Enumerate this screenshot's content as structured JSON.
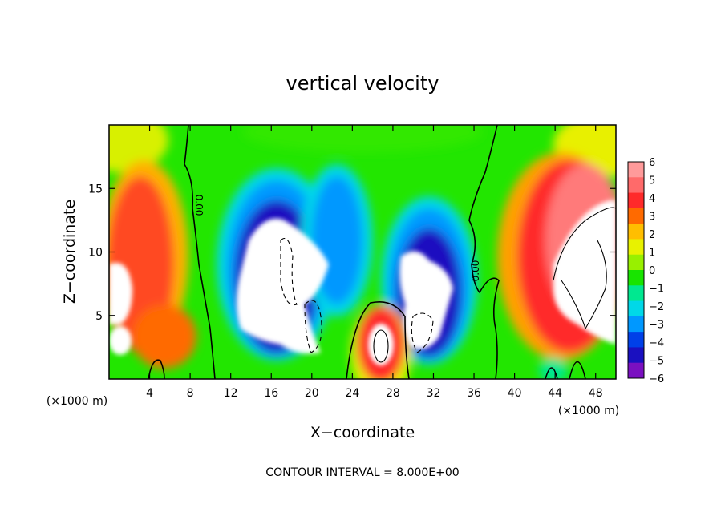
{
  "chart_data": {
    "type": "heatmap",
    "title": "vertical velocity",
    "xlabel": "X−coordinate",
    "ylabel": "Z−coordinate",
    "x_unit_left": "(×1000 m)",
    "x_unit_right": "(×1000 m)",
    "xlim": [
      0,
      50
    ],
    "ylim": [
      0,
      20
    ],
    "x_ticks": [
      4,
      8,
      12,
      16,
      20,
      24,
      28,
      32,
      36,
      40,
      44,
      48
    ],
    "y_ticks": [
      5,
      10,
      15
    ],
    "colorbar": {
      "ticks": [
        "6",
        "5",
        "4",
        "3",
        "2",
        "1",
        "0",
        "−1",
        "−2",
        "−3",
        "−4",
        "−5",
        "−6"
      ],
      "colors": [
        "#ff9a9a",
        "#ff6a6a",
        "#ff2a2a",
        "#ff6a00",
        "#ffbe00",
        "#e8f200",
        "#98f000",
        "#18e400",
        "#00e890",
        "#00d8e8",
        "#0098ff",
        "#0040e8",
        "#1a10c0",
        "#7a10c0"
      ]
    },
    "contour_labels": [
      "0.00",
      "0.00"
    ],
    "annotation": "CONTOUR INTERVAL = 8.000E+00",
    "features": [
      {
        "kind": "updraft",
        "x": 26.5,
        "z": 3.0,
        "peak": "> 6"
      },
      {
        "kind": "downdraft",
        "x": 17.5,
        "z": 7.0,
        "peak": "< -6"
      },
      {
        "kind": "downdraft",
        "x": 31.0,
        "z": 5.5,
        "peak": "< -6"
      },
      {
        "kind": "updraft",
        "x": 46.0,
        "z": 8.0,
        "peak": "> 6"
      },
      {
        "kind": "updraft",
        "x": 2.0,
        "z": 8.0,
        "peak": "> 6"
      }
    ]
  }
}
